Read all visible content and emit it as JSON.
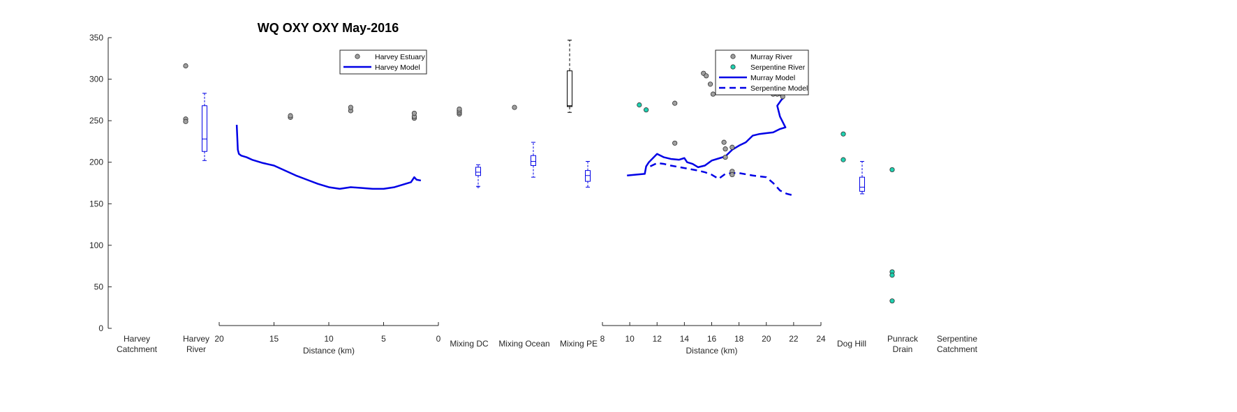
{
  "chart_data": {
    "type": "scatter",
    "title": "WQ OXY OXY May-2016",
    "ylim": [
      0,
      350
    ],
    "yticks": [
      0,
      50,
      100,
      150,
      200,
      250,
      300,
      350
    ],
    "ylabel": "",
    "colors": {
      "obs_grey": "#a0a0a0",
      "obs_cyan": "#1fd1b0",
      "model": "#0000e6",
      "box_black": "#000000"
    },
    "categories": [
      {
        "id": "harvey_catchment",
        "label": [
          "Harvey",
          "Catchment"
        ]
      },
      {
        "id": "harvey_river",
        "label": [
          "Harvey",
          "River"
        ]
      },
      {
        "id": "mixing_dc",
        "label": [
          "Mixing DC"
        ]
      },
      {
        "id": "mixing_ocean",
        "label": [
          "Mixing Ocean"
        ]
      },
      {
        "id": "mixing_pe",
        "label": [
          "Mixing PE"
        ]
      },
      {
        "id": "dog_hill",
        "label": [
          "Dog Hill"
        ]
      },
      {
        "id": "punrack_drain",
        "label": [
          "Punrack",
          "Drain"
        ]
      },
      {
        "id": "serpentine_catchment",
        "label": [
          "Serpentine",
          "Catchment"
        ]
      }
    ],
    "harvey_axis": {
      "xlabel": "Distance (km)",
      "xlim": [
        20,
        0
      ],
      "xticks": [
        20,
        15,
        10,
        5,
        0
      ],
      "legend": [
        {
          "label": "Harvey Estuary",
          "kind": "marker",
          "color": "#a0a0a0"
        },
        {
          "label": "Harvey Model",
          "kind": "solid",
          "color": "#0000e6"
        }
      ],
      "obs": {
        "x": [
          13.5,
          13.5,
          8,
          8,
          2.2,
          2.2,
          2.2
        ],
        "y": [
          254,
          256,
          262,
          266,
          253,
          255,
          259
        ]
      },
      "model": {
        "x": [
          18.4,
          18.35,
          18.3,
          18.2,
          18.0,
          17.5,
          17.0,
          16.0,
          15.0,
          14.0,
          13.0,
          12.0,
          11.0,
          10.0,
          9.0,
          8.0,
          7.0,
          6.0,
          5.0,
          4.0,
          3.0,
          2.5,
          2.2,
          2.0,
          1.6
        ],
        "y": [
          245,
          230,
          215,
          210,
          208,
          206,
          203,
          199,
          196,
          190,
          184,
          179,
          174,
          170,
          168,
          170,
          169,
          168,
          168,
          170,
          174,
          176,
          182,
          179,
          178
        ]
      }
    },
    "murray_axis": {
      "xlabel": "Distance (km)",
      "xlim": [
        8,
        24
      ],
      "xticks": [
        8,
        10,
        12,
        14,
        16,
        18,
        20,
        22,
        24
      ],
      "legend": [
        {
          "label": "Murray River",
          "kind": "marker",
          "color": "#a0a0a0"
        },
        {
          "label": "Serpentine River",
          "kind": "marker",
          "color": "#1fd1b0"
        },
        {
          "label": "Murray Model",
          "kind": "solid",
          "color": "#0000e6"
        },
        {
          "label": "Serpentine Model",
          "kind": "dashed",
          "color": "#0000e6"
        }
      ],
      "murray_obs": {
        "x": [
          13.3,
          13.3,
          15.4,
          15.6,
          15.9,
          16.1,
          16.9,
          17.0,
          17.0,
          17.5,
          17.5,
          17.5,
          20.5,
          20.8,
          21.1,
          21.2
        ],
        "y": [
          271,
          223,
          307,
          304,
          294,
          282,
          224,
          216,
          206,
          218,
          189,
          185,
          282,
          282,
          282,
          279
        ]
      },
      "serpentine_obs": {
        "x": [
          10.7,
          11.2
        ],
        "y": [
          269,
          263
        ]
      },
      "murray_model": {
        "x": [
          9.8,
          10.4,
          11.1,
          11.2,
          11.4,
          12.0,
          12.5,
          13.0,
          13.6,
          14.0,
          14.2,
          14.6,
          15.0,
          15.5,
          16.0,
          16.6,
          17.0,
          17.5,
          18.0,
          18.5,
          19.0,
          19.5,
          20.0,
          20.5,
          21.0,
          21.4,
          21.0,
          20.8,
          21.1,
          21.3
        ],
        "y": [
          184,
          185,
          186,
          195,
          200,
          210,
          206,
          204,
          203,
          205,
          200,
          198,
          194,
          196,
          202,
          205,
          207,
          215,
          220,
          224,
          232,
          234,
          235,
          236,
          240,
          242,
          255,
          268,
          275,
          278
        ]
      },
      "serpentine_model": {
        "x": [
          11.5,
          12.0,
          12.5,
          13.0,
          14.0,
          15.0,
          15.5,
          16.0,
          16.5,
          17.0,
          17.5,
          18.0,
          19.0,
          20.0,
          20.5,
          21.0,
          21.5,
          22.0
        ],
        "y": [
          195,
          199,
          198,
          196,
          193,
          190,
          188,
          185,
          180,
          186,
          187,
          187,
          184,
          182,
          175,
          166,
          162,
          160
        ]
      }
    },
    "boxes": [
      {
        "category": "harvey_river",
        "color": "#0000e6",
        "whisker_low": 202,
        "q1": 213,
        "median": 228,
        "q3": 268,
        "whisker_high": 283,
        "outliers": []
      },
      {
        "category": "mixing_dc",
        "color": "#0000e6",
        "whisker_low": 171,
        "q1": 184,
        "median": 188,
        "q3": 194,
        "whisker_high": 197,
        "outliers": [
          170
        ]
      },
      {
        "category": "mixing_ocean",
        "color": "#0000e6",
        "whisker_low": 182,
        "q1": 196,
        "median": 201,
        "q3": 208,
        "whisker_high": 224,
        "outliers": []
      },
      {
        "category": "mixing_pe",
        "color": "#000000",
        "whisker_low": 260,
        "q1": 267,
        "median": 268,
        "q3": 310,
        "whisker_high": 347,
        "outliers": []
      },
      {
        "category": "mixing_pe",
        "color": "#0000e6",
        "whisker_low": 170,
        "q1": 177,
        "median": 184,
        "q3": 190,
        "whisker_high": 201,
        "outliers": []
      },
      {
        "category": "dog_hill",
        "color": "#0000e6",
        "whisker_low": 162,
        "q1": 165,
        "median": 170,
        "q3": 182,
        "whisker_high": 201,
        "outliers": []
      }
    ],
    "category_obs": [
      {
        "category": "harvey_river",
        "color": "#a0a0a0",
        "y": [
          316,
          252,
          249
        ]
      },
      {
        "category": "mixing_dc",
        "color": "#a0a0a0",
        "y": [
          258,
          260,
          262,
          264
        ]
      },
      {
        "category": "mixing_ocean",
        "color": "#a0a0a0",
        "y": [
          266
        ]
      },
      {
        "category": "dog_hill",
        "color": "#1fd1b0",
        "y": [
          234,
          203
        ]
      },
      {
        "category": "punrack_drain",
        "color": "#1fd1b0",
        "y": [
          191,
          68,
          64,
          33
        ]
      }
    ]
  }
}
